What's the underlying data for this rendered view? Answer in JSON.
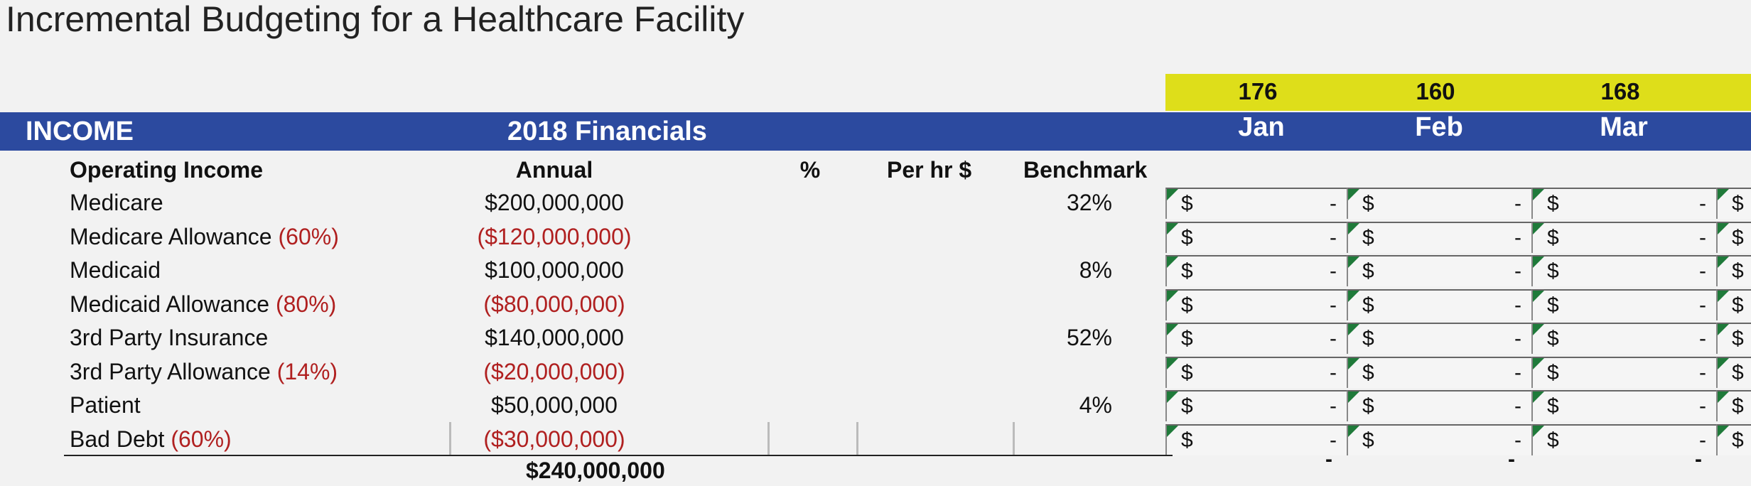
{
  "title": "Incremental Budgeting for a Healthcare Facility",
  "header": {
    "income": "INCOME",
    "financials": "2018 Financials",
    "months": [
      {
        "label": "Jan",
        "hours": "176"
      },
      {
        "label": "Feb",
        "hours": "160"
      },
      {
        "label": "Mar",
        "hours": "168"
      }
    ]
  },
  "columns": {
    "operating_income": "Operating Income",
    "annual": "Annual",
    "percent": "%",
    "per_hr": "Per hr $",
    "benchmark": "Benchmark"
  },
  "rows": [
    {
      "label": "Medicare",
      "pct": "",
      "annual": "$200,000,000",
      "negative": false,
      "benchmark": "32%"
    },
    {
      "label": "Medicare Allowance ",
      "pct": "(60%)",
      "annual": "($120,000,000)",
      "negative": true,
      "benchmark": ""
    },
    {
      "label": "Medicaid",
      "pct": "",
      "annual": "$100,000,000",
      "negative": false,
      "benchmark": "8%"
    },
    {
      "label": "Medicaid Allowance ",
      "pct": "(80%)",
      "annual": "($80,000,000)",
      "negative": true,
      "benchmark": ""
    },
    {
      "label": "3rd Party Insurance",
      "pct": "",
      "annual": "$140,000,000",
      "negative": false,
      "benchmark": "52%"
    },
    {
      "label": "3rd Party Allowance ",
      "pct": "(14%)",
      "annual": "($20,000,000)",
      "negative": true,
      "benchmark": ""
    },
    {
      "label": "Patient",
      "pct": "",
      "annual": "$50,000,000",
      "negative": false,
      "benchmark": "4%"
    },
    {
      "label": "Bad Debt ",
      "pct": "(60%)",
      "annual": "($30,000,000)",
      "negative": true,
      "benchmark": ""
    }
  ],
  "cell": {
    "currency": "$",
    "empty": "-"
  },
  "total": "$240,000,000",
  "colors": {
    "header_band": "#2c4a9f",
    "highlight": "#dede1a",
    "negative": "#b02020",
    "error_flag": "#1f7a3a"
  }
}
